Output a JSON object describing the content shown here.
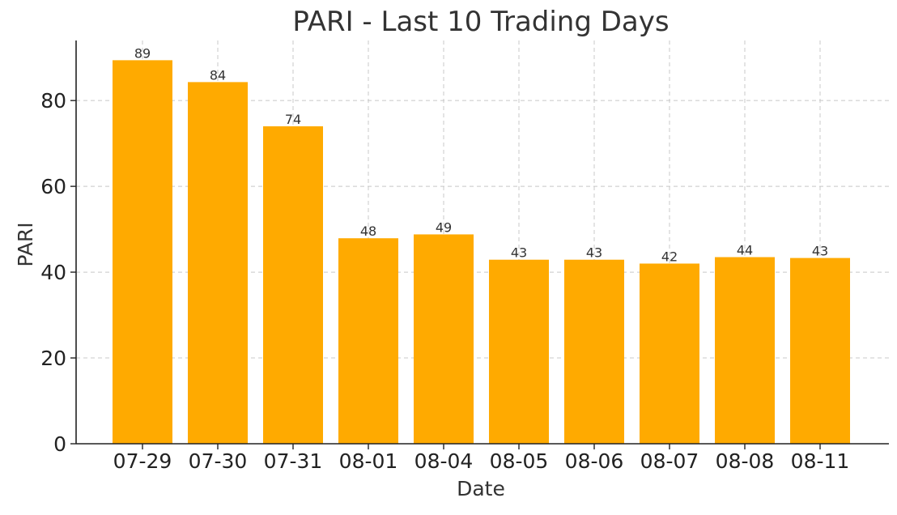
{
  "chart_data": {
    "type": "bar",
    "title": "PARI - Last 10 Trading Days",
    "xlabel": "Date",
    "ylabel": "PARI",
    "categories": [
      "07-29",
      "07-30",
      "07-31",
      "08-01",
      "08-04",
      "08-05",
      "08-06",
      "08-07",
      "08-08",
      "08-11"
    ],
    "values": [
      89.4,
      84.3,
      74.0,
      47.9,
      48.8,
      42.9,
      42.9,
      42.0,
      43.5,
      43.3
    ],
    "data_labels": [
      "89",
      "84",
      "74",
      "48",
      "49",
      "43",
      "43",
      "42",
      "44",
      "43"
    ],
    "ylim": [
      0,
      94
    ],
    "yticks": [
      0,
      20,
      40,
      60,
      80
    ],
    "grid": true,
    "bar_color": "#FFAA00"
  }
}
